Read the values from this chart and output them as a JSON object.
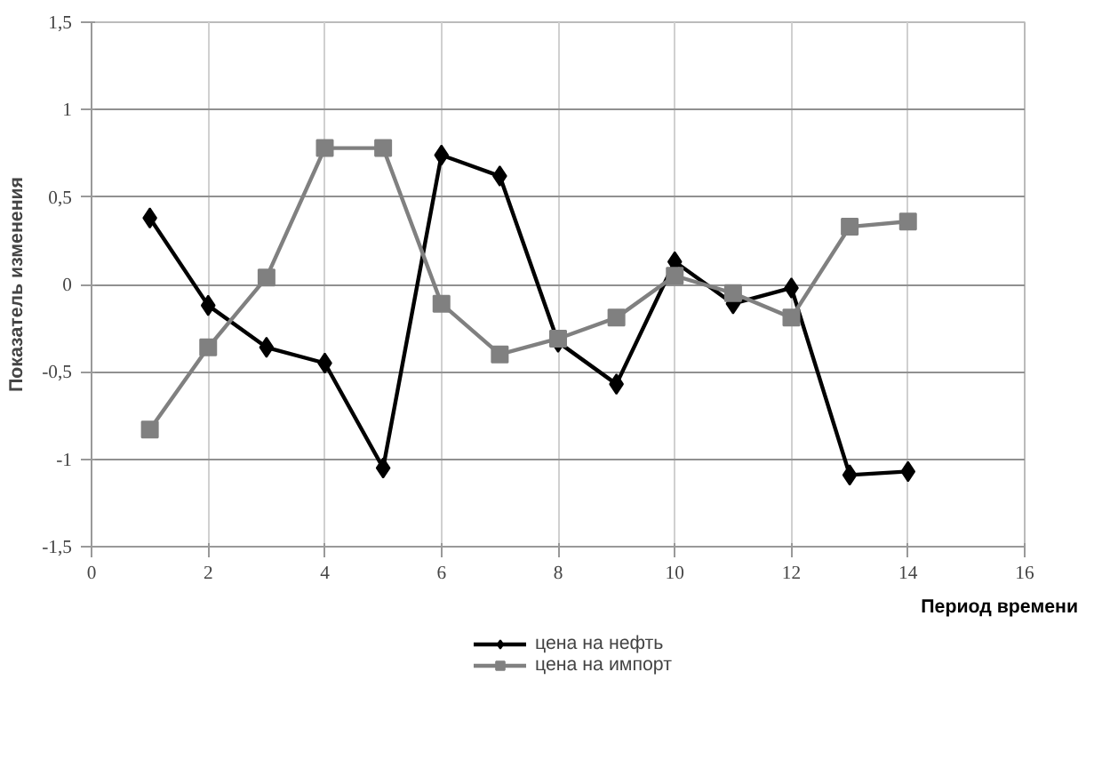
{
  "chart_data": {
    "type": "line",
    "xlabel": "Период времени",
    "ylabel": "Показатель изменения",
    "x": [
      1,
      2,
      3,
      4,
      5,
      6,
      7,
      8,
      9,
      10,
      11,
      12,
      13,
      14
    ],
    "series": [
      {
        "name": "цена на нефть",
        "color": "#000000",
        "marker": "diamond",
        "values": [
          0.38,
          -0.12,
          -0.36,
          -0.45,
          -1.05,
          0.74,
          0.62,
          -0.33,
          -0.57,
          0.13,
          -0.11,
          -0.02,
          -1.09,
          -1.07
        ]
      },
      {
        "name": "цена на импорт",
        "color": "#808080",
        "marker": "square",
        "values": [
          -0.83,
          -0.36,
          0.04,
          0.78,
          0.78,
          -0.11,
          -0.4,
          -0.31,
          -0.19,
          0.05,
          -0.05,
          -0.19,
          0.33,
          0.36
        ]
      }
    ],
    "xlim": [
      0,
      16
    ],
    "xticks": [
      0,
      2,
      4,
      6,
      8,
      10,
      12,
      14,
      16
    ],
    "ylim": [
      -1.5,
      1.5
    ],
    "yticks": [
      {
        "value": -1.5,
        "label": "-1,5"
      },
      {
        "value": -1,
        "label": "-1"
      },
      {
        "value": -0.5,
        "label": "-0,5"
      },
      0,
      {
        "value": 0.5,
        "label": "0,5"
      },
      1,
      {
        "value": 1.5,
        "label": "1,5"
      }
    ],
    "grid": true,
    "legend": "bottom",
    "line_style": "solid"
  }
}
